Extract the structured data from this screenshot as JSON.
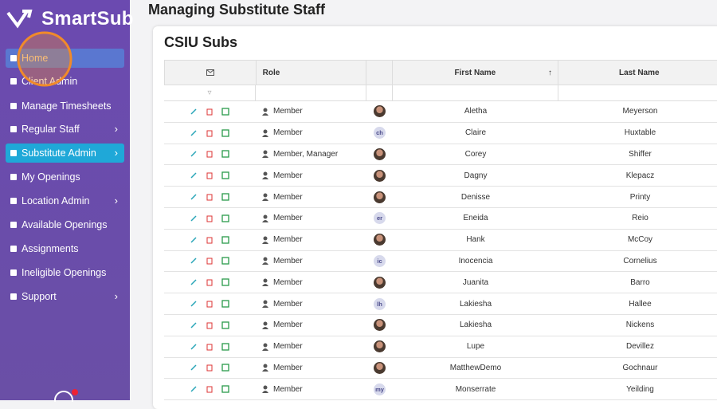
{
  "sidebar": {
    "brand": "SmartSub",
    "items": [
      "Home",
      "Client Admin",
      "Manage Timesheets",
      "Regular Staff",
      "Substitute Admin",
      "My Openings",
      "Location Admin",
      "Available Openings",
      "Assignments",
      "Ineligible Openings",
      "Support"
    ]
  },
  "header": {
    "title": "Managing Substitute Staff"
  },
  "card": {
    "title": "CSIU Subs"
  },
  "table": {
    "columns": [
      "Role",
      "First Name",
      "Last Name"
    ],
    "rows": [
      {
        "role": "Member",
        "first": "Aletha",
        "last": "Meyerson"
      },
      {
        "role": "Member",
        "initials": "ch",
        "first": "Claire",
        "last": "Huxtable"
      },
      {
        "role": "Member, Manager",
        "first": "Corey",
        "last": "Shiffer"
      },
      {
        "role": "Member",
        "first": "Dagny",
        "last": "Klepacz"
      },
      {
        "role": "Member",
        "first": "Denisse",
        "last": "Printy"
      },
      {
        "role": "Member",
        "initials": "er",
        "first": "Eneida",
        "last": "Reio"
      },
      {
        "role": "Member",
        "first": "Hank",
        "last": "McCoy"
      },
      {
        "role": "Member",
        "initials": "ic",
        "first": "Inocencia",
        "last": "Cornelius"
      },
      {
        "role": "Member",
        "first": "Juanita",
        "last": "Barro"
      },
      {
        "role": "Member",
        "initials": "lh",
        "first": "Lakiesha",
        "last": "Hallee"
      },
      {
        "role": "Member",
        "first": "Lakiesha",
        "last": "Nickens"
      },
      {
        "role": "Member",
        "first": "Lupe",
        "last": "Devillez"
      },
      {
        "role": "Member",
        "first": "MatthewDemo",
        "last": "Gochnaur"
      },
      {
        "role": "Member",
        "initials": "my",
        "first": "Monserrate",
        "last": "Yeilding"
      }
    ]
  }
}
